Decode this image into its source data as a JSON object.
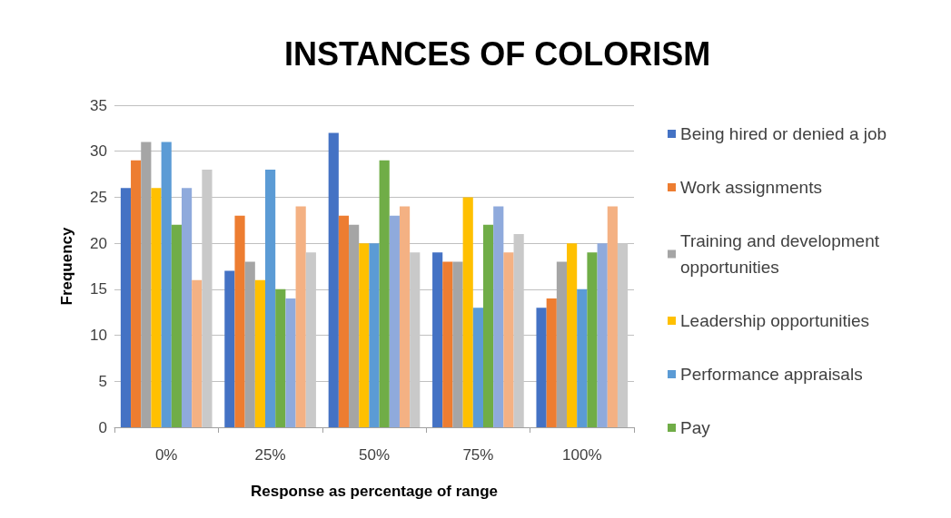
{
  "chart_data": {
    "type": "bar",
    "title": "INSTANCES OF COLORISM",
    "xlabel": "Response as percentage of range",
    "ylabel": "Frequency",
    "categories": [
      "0%",
      "25%",
      "50%",
      "75%",
      "100%"
    ],
    "series": [
      {
        "name": "Being hired or denied a job",
        "color": "#4472c4",
        "values": [
          26,
          17,
          32,
          19,
          13
        ]
      },
      {
        "name": "Work assignments",
        "color": "#ed7d31",
        "values": [
          29,
          23,
          23,
          18,
          14
        ]
      },
      {
        "name": "Training and development opportunities",
        "color": "#a5a5a5",
        "values": [
          31,
          18,
          22,
          18,
          18
        ]
      },
      {
        "name": "Leadership opportunities",
        "color": "#ffc000",
        "values": [
          26,
          16,
          20,
          25,
          20
        ]
      },
      {
        "name": "Performance appraisals",
        "color": "#5b9bd5",
        "values": [
          31,
          28,
          20,
          13,
          15
        ]
      },
      {
        "name": "Pay",
        "color": "#70ad47",
        "values": [
          22,
          15,
          29,
          22,
          19
        ]
      },
      {
        "color": "#8faadc",
        "values": [
          26,
          14,
          23,
          24,
          20
        ]
      },
      {
        "color": "#f4b183",
        "values": [
          16,
          24,
          24,
          19,
          24
        ]
      },
      {
        "color": "#c9c9c9",
        "values": [
          28,
          19,
          19,
          21,
          20
        ]
      }
    ],
    "ylim": [
      0,
      35
    ],
    "yticks": [
      0,
      5,
      10,
      15,
      20,
      25,
      30,
      35
    ],
    "grid": "y",
    "legend": "right"
  }
}
